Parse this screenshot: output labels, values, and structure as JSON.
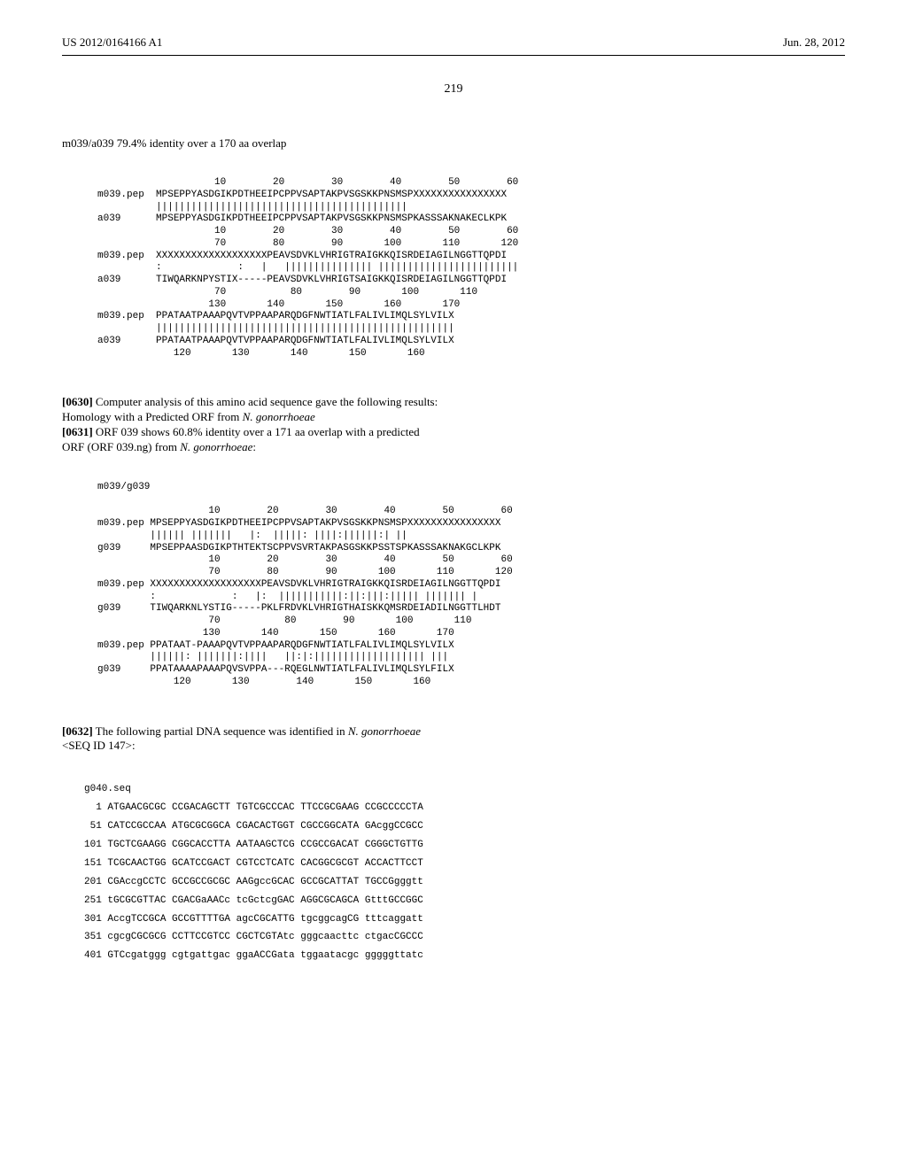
{
  "header": {
    "pub_number": "US 2012/0164166 A1",
    "pub_date": "Jun. 28, 2012"
  },
  "page_number": "219",
  "alignment1": {
    "title": "m039/a039 79.4% identity over a 170 aa overlap",
    "lines": [
      "                    10        20        30        40        50        60",
      "m039.pep  MPSEPPYASDGIKPDTHEEIPCPPVSAPTAKPVSGSKKPNSMSPXXXXXXXXXXXXXXXX",
      "          |||||||||||||||||||||||||||||||||||||||||||",
      "a039      MPSEPPYASDGIKPDTHEEIPCPPVSAPTAKPVSGSKKPNSMSPKASSSAKNAKECLKPK",
      "                    10        20        30        40        50        60",
      "                    70        80        90       100       110       120",
      "m039.pep  XXXXXXXXXXXXXXXXXXXPEAVSDVKLVHRIGTRAIGKKQISRDEIAGILNGGTTQPDI",
      "          :             :   |   ||||||||||||||| ||||||||||||||||||||||||",
      "a039      TIWQARKNPYSTIX-----PEAVSDVKLVHRIGTSAIGKKQISRDEIAGILNGGTTQPDI",
      "                    70           80        90       100       110",
      "                   130       140       150       160       170",
      "m039.pep  PPATAATPAAAPQVTVPPAAPARQDGFNWTIATLFALIVLIMQLSYLVILX",
      "          |||||||||||||||||||||||||||||||||||||||||||||||||||",
      "a039      PPATAATPAAAPQVTVPPAAPARQDGFNWTIATLFALIVLIMQLSYLVILX",
      "             120       130       140       150       160"
    ]
  },
  "para1": {
    "num": "[0630]",
    "text": " Computer analysis of this amino acid sequence gave the following results:",
    "subtitle": "Homology with a Predicted ORF from ",
    "subtitle_italic": "N. gonorrhoeae"
  },
  "para2": {
    "num": "[0631]",
    "text": " ORF 039 shows 60.8% identity over a 171 aa overlap with a predicted ORF (ORF 039.ng) from ",
    "italic": "N. gonorrhoeae",
    "after": ":"
  },
  "alignment2": {
    "title": "m039/g039",
    "lines": [
      "                   10        20        30        40        50        60",
      "m039.pep MPSEPPYASDGIKPDTHEEIPCPPVSAPTAKPVSGSKKPNSMSPXXXXXXXXXXXXXXXX",
      "         |||||| |||||||   |:  |||||: ||||:||||||:| ||",
      "g039     MPSEPPAASDGIKPTHTEKTSCPPVSVRTAKPASGSKKPSSTSPKASSSAKNAKGCLKPK",
      "                   10        20        30        40        50        60",
      "                   70        80        90       100       110       120",
      "m039.pep XXXXXXXXXXXXXXXXXXXPEAVSDVKLVHRIGTRAIGKKQISRDEIAGILNGGTTQPDI",
      "         :             :   |:  |||||||||||:||:|||:||||| ||||||| |",
      "g039     TIWQARKNLYSTIG-----PKLFRDVKLVHRIGTHAISKKQMSRDEIADILNGGTTLHDT",
      "                   70           80        90       100       110",
      "                  130       140       150       160       170",
      "m039.pep PPATAAT-PAAAPQVTVPPAAPARQDGFNWTIATLFALIVLIMQLSYLVILX",
      "         ||||||: |||||||:||||   ||:|:||||||||||||||||||| |||",
      "g039     PPATAAAAPAAAPQVSVPPA---RQEGLNWTIATLFALIVLIMQLSYLFILX",
      "             120       130        140       150       160"
    ]
  },
  "para3": {
    "num": "[0632]",
    "text": " The following partial DNA sequence was identified in ",
    "italic": "N. gonorrhoeae",
    "after": " <SEQ ID 147>:"
  },
  "seq": {
    "title": "g040.seq",
    "lines": [
      "  1 ATGAACGCGC CCGACAGCTT TGTCGCCCAC TTCCGCGAAG CCGCCCCCTA",
      " 51 CATCCGCCAA ATGCGCGGCA CGACACTGGT CGCCGGCATA GAcggCCGCC",
      "101 TGCTCGAAGG CGGCACCTTA AATAAGCTCG CCGCCGACAT CGGGCTGTTG",
      "151 TCGCAACTGG GCATCCGACT CGTCCTCATC CACGGCGCGT ACCACTTCCT",
      "201 CGAccgCCTC GCCGCCGCGC AAGgccGCAC GCCGCATTAT TGCCGgggtt",
      "251 tGCGCGTTAC CGACGaAACc tcGctcgGAC AGGCGCAGCA GtttGCCGGC",
      "301 AccgTCCGCA GCCGTTTTGA agcCGCATTG tgcggcagCG tttcaggatt",
      "351 cgcgCGCGCG CCTTCCGTCC CGCTCGTAtc gggcaacttc ctgacCGCCC",
      "401 GTCcgatggg cgtgattgac ggaACCGata tggaatacgc gggggttatc"
    ]
  }
}
